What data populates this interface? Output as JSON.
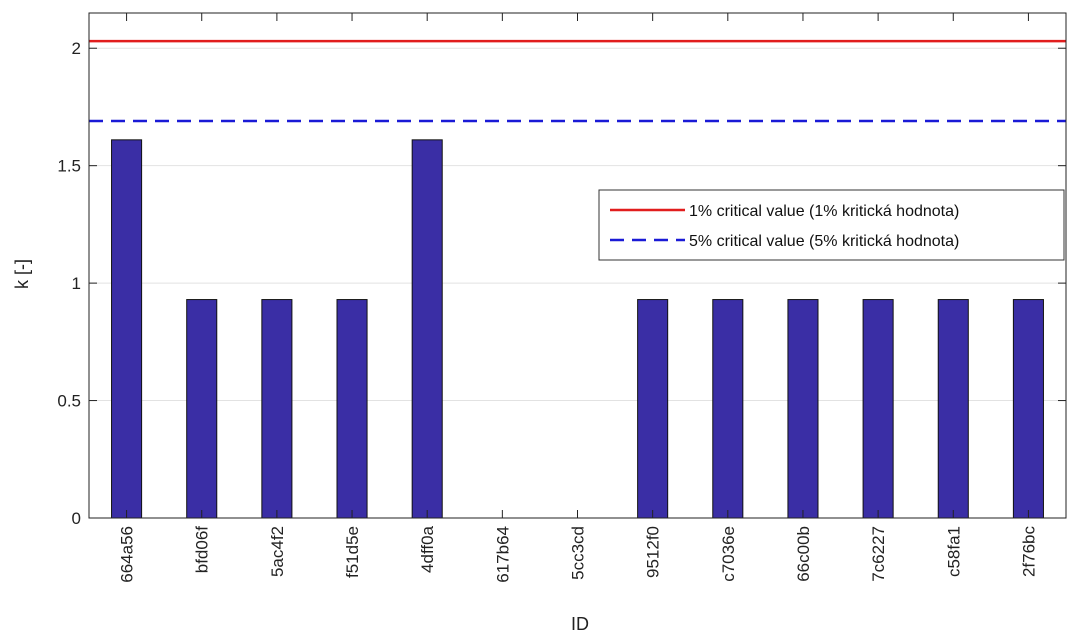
{
  "chart_data": {
    "type": "bar",
    "xlabel": "ID",
    "ylabel": "k [-]",
    "categories": [
      "664a56",
      "bfd06f",
      "5ac4f2",
      "f51d5e",
      "4dff0a",
      "617b64",
      "5cc3cd",
      "9512f0",
      "c7036e",
      "66c00b",
      "7c6227",
      "c58fa1",
      "2f76bc"
    ],
    "values": [
      1.61,
      0.93,
      0.93,
      0.93,
      1.61,
      0,
      0,
      0.93,
      0.93,
      0.93,
      0.93,
      0.93,
      0.93
    ],
    "ylim": [
      0,
      2.15
    ],
    "yticks": [
      0,
      0.5,
      1,
      1.5,
      2
    ],
    "ytick_labels": [
      "0",
      "0.5",
      "1",
      "1.5",
      "2"
    ],
    "grid": "horizontal",
    "bar_color": "#3a2ea5",
    "reference_lines": [
      {
        "name": "1% critical value (1% kritická hodnota)",
        "value": 2.03,
        "color": "#e11d1d",
        "style": "solid"
      },
      {
        "name": "5% critical value (5% kritická hodnota)",
        "value": 1.69,
        "color": "#1a1ad6",
        "style": "dashed"
      }
    ],
    "legend_position": "right"
  }
}
